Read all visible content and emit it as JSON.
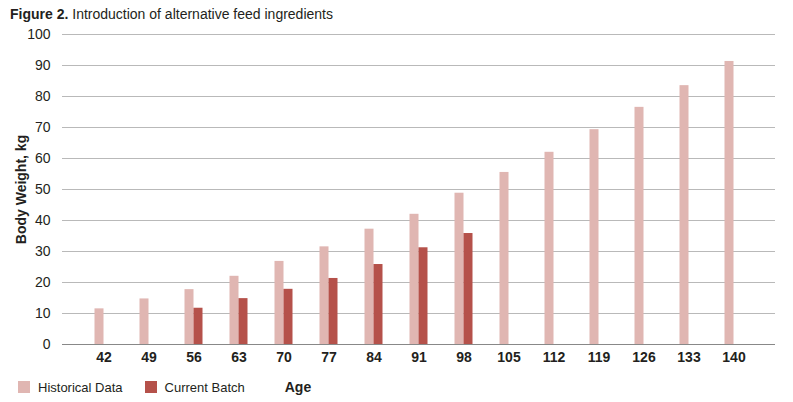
{
  "chart_data": {
    "type": "bar",
    "title": "Figure 2. Introduction of alternative feed ingredients",
    "x_label": "Age",
    "y_label": "Body Weight, kg",
    "categories": [
      42,
      49,
      56,
      63,
      70,
      77,
      84,
      91,
      98,
      105,
      112,
      119,
      126,
      133,
      140
    ],
    "series": [
      {
        "name": "Historical Data",
        "color": "#e0b6b2",
        "values": [
          11.5,
          14.7,
          17.7,
          22,
          26.8,
          31.5,
          37.2,
          42,
          48.8,
          55.5,
          62,
          69.3,
          76.5,
          83.5,
          91.3
        ]
      },
      {
        "name": "Current Batch",
        "color": "#b5514a",
        "values": [
          null,
          null,
          11.7,
          14.8,
          17.8,
          21.3,
          25.8,
          31.2,
          35.8,
          null,
          null,
          null,
          null,
          null,
          null
        ]
      }
    ],
    "ylim": [
      0,
      100
    ],
    "yticks": [
      0,
      10,
      20,
      30,
      40,
      50,
      60,
      70,
      80,
      90,
      100
    ],
    "grid": true,
    "legend": "bottom"
  }
}
